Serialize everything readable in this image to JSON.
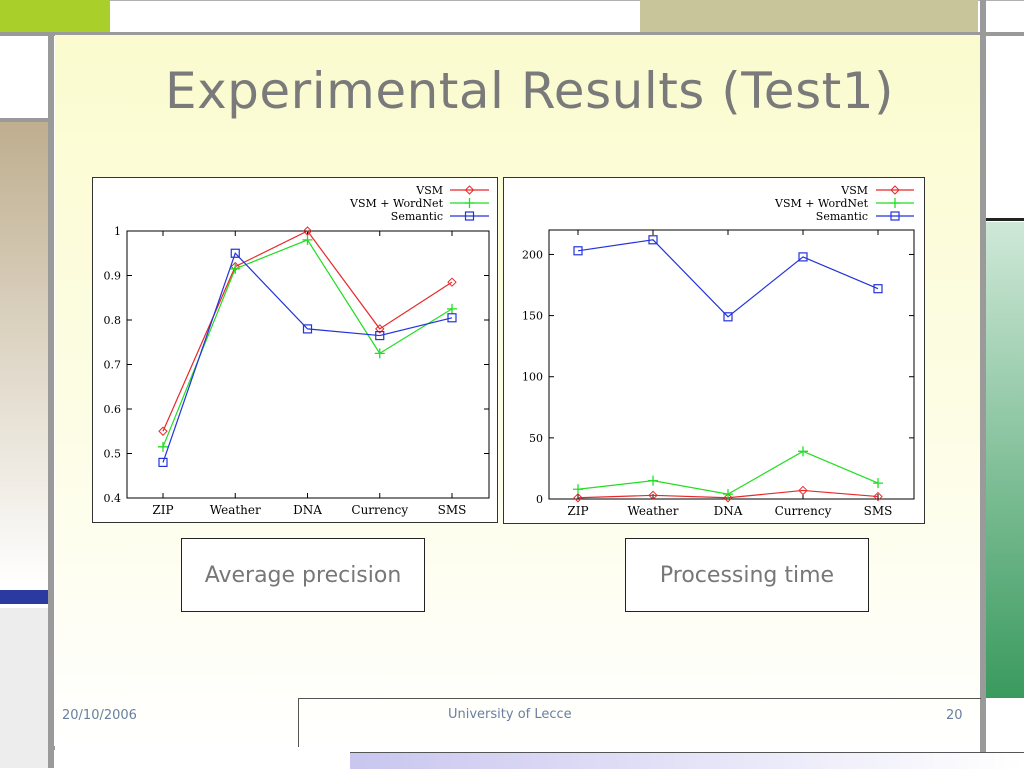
{
  "slide": {
    "title": "Experimental Results (Test1)",
    "callouts": [
      "Average precision",
      "Processing time"
    ],
    "footer": {
      "date": "20/10/2006",
      "org": "University of Lecce",
      "page": "20"
    }
  },
  "legend_labels": [
    "VSM",
    "VSM + WordNet",
    "Semantic"
  ],
  "colors": {
    "vsm": "#e8282a",
    "wordnet": "#22dd22",
    "semantic": "#2233dd"
  },
  "chart_data": [
    {
      "type": "line",
      "title": "",
      "xlabel": "",
      "ylabel": "",
      "categories": [
        "ZIP",
        "Weather",
        "DNA",
        "Currency",
        "SMS"
      ],
      "ylim": [
        0.4,
        1.0
      ],
      "yticks": [
        "0.4",
        "0.5",
        "0.6",
        "0.7",
        "0.8",
        "0.9",
        "1"
      ],
      "legend_position": "top-right",
      "series": [
        {
          "name": "VSM",
          "values": [
            0.55,
            0.92,
            1.0,
            0.78,
            0.885
          ]
        },
        {
          "name": "VSM + WordNet",
          "values": [
            0.515,
            0.915,
            0.98,
            0.725,
            0.825
          ]
        },
        {
          "name": "Semantic",
          "values": [
            0.48,
            0.95,
            0.78,
            0.765,
            0.805
          ]
        }
      ]
    },
    {
      "type": "line",
      "title": "",
      "xlabel": "",
      "ylabel": "",
      "categories": [
        "ZIP",
        "Weather",
        "DNA",
        "Currency",
        "SMS"
      ],
      "ylim": [
        0,
        220
      ],
      "yticks": [
        "0",
        "50",
        "100",
        "150",
        "200"
      ],
      "legend_position": "top-right",
      "series": [
        {
          "name": "VSM",
          "values": [
            1,
            3,
            1,
            7,
            2
          ]
        },
        {
          "name": "VSM + WordNet",
          "values": [
            8,
            15,
            4,
            39,
            13
          ]
        },
        {
          "name": "Semantic",
          "values": [
            203,
            212,
            149,
            198,
            172
          ]
        }
      ]
    }
  ]
}
